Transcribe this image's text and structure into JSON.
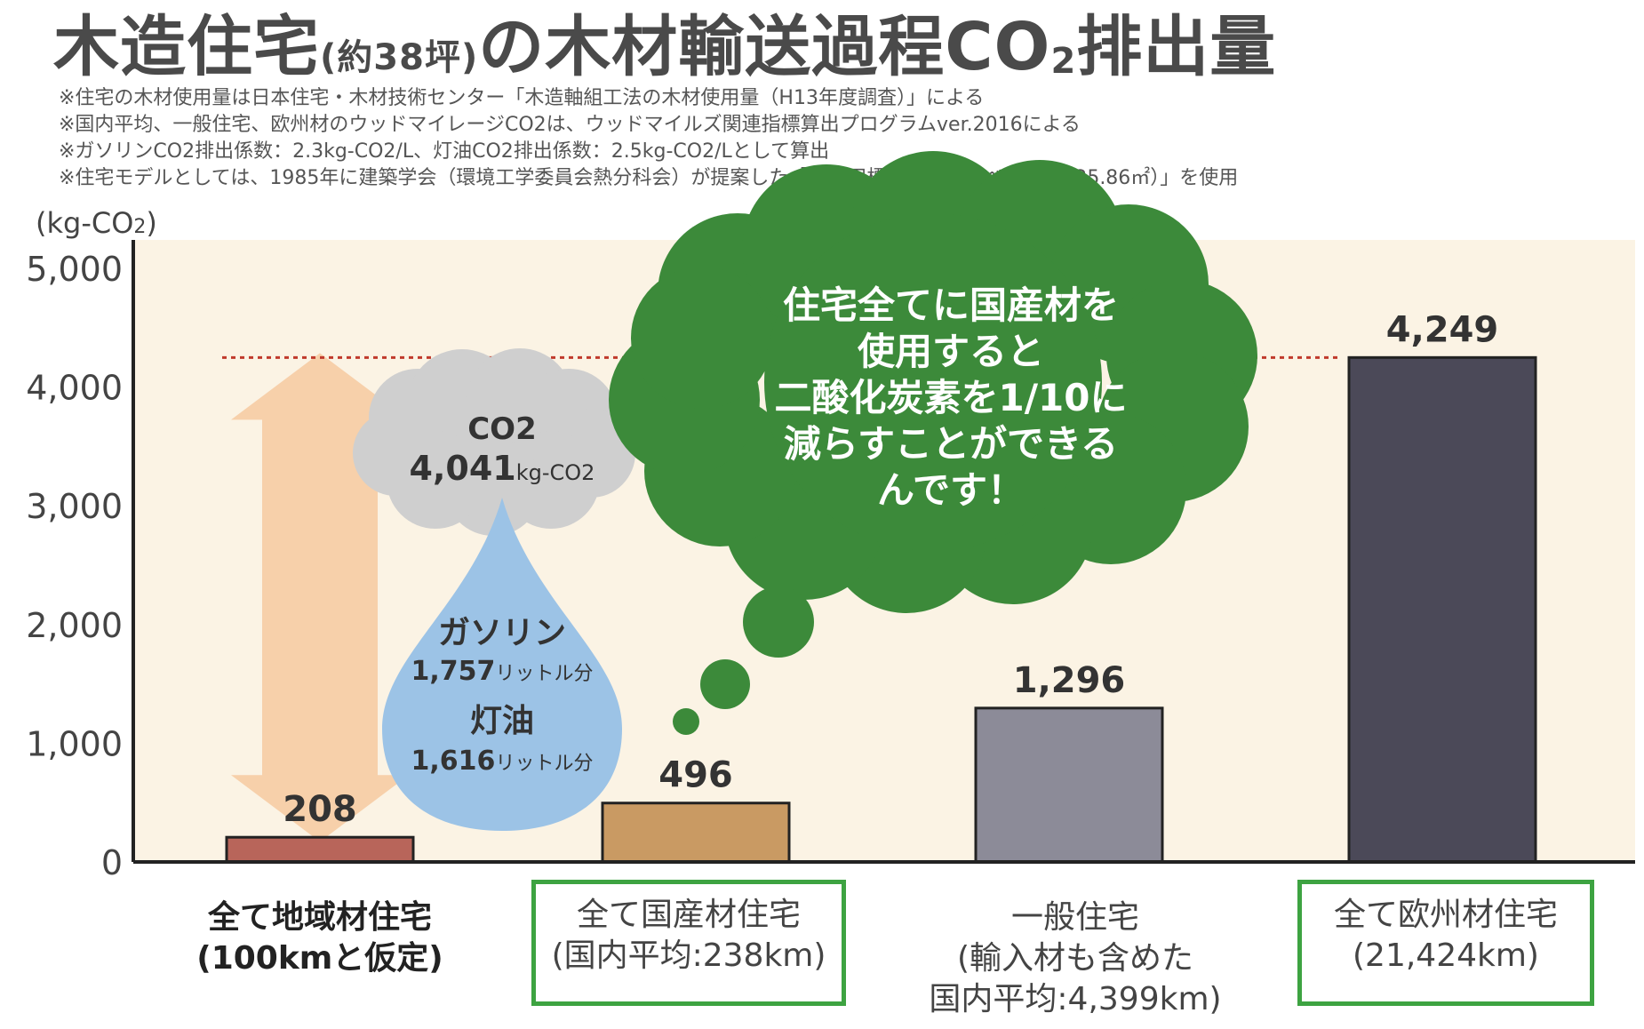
{
  "title": {
    "main": "木造住宅",
    "paren": "(約38坪)",
    "rest": "の木材輸送過程CO",
    "sub2": "2",
    "tail": "排出量"
  },
  "notes": [
    "※住宅の木材使用量は日本住宅・木材技術センター「木造軸組工法の木材使用量（H13年度調査）」による",
    "※国内平均、一般住宅、欧州材のウッドマイレージCO2は、ウッドマイルズ関連指標算出プログラムver.2016による",
    "※ガソリンCO2排出係数：2.3kg-CO2/L、灯油CO2排出係数：2.5kg-CO2/Lとして算出",
    "※住宅モデルとしては、1985年に建築学会（環境工学委員会熱分科会）が提案した「住宅用標準問題（延べ床面積125.86㎡）」を使用"
  ],
  "unit_label": {
    "main": "(kg-CO",
    "sub": "2",
    "close": ")"
  },
  "callout": {
    "lines": [
      "住宅全てに国産材を",
      "使用すると",
      "二酸化炭素を1/10に",
      "減らすことができる",
      "んです！"
    ]
  },
  "co2_cloud": {
    "label": "CO2",
    "value": "4,041",
    "unit": "kg-CO2"
  },
  "drop": {
    "gas_label": "ガソリン",
    "gas_value": "1,757",
    "gas_unit": "リットル分",
    "kero_label": "灯油",
    "kero_value": "1,616",
    "kero_unit": "リットル分"
  },
  "categories_text": [
    {
      "line1": "全て地域材住宅",
      "line2": "(100kmと仮定)",
      "line3": ""
    },
    {
      "line1": "全て国産材住宅",
      "line2": "(国内平均:238km)",
      "line3": ""
    },
    {
      "line1": "一般住宅",
      "line2": "(輸入材も含めた",
      "line3": "国内平均:4,399km)"
    },
    {
      "line1": "全て欧州材住宅",
      "line2": "(21,424km)",
      "line3": ""
    }
  ],
  "colors": {
    "background": "#fbf3e4",
    "bar_local": "#b8655a",
    "bar_domestic": "#c99a63",
    "bar_general": "#8c8b98",
    "bar_europe": "#4b4958",
    "callout_green": "#3c8a3a",
    "box_green": "#3da341",
    "arrow": "#f6c9a0",
    "cloud_grey": "#cfcfcf",
    "drop_blue": "#9cc3e6",
    "ref_line": "#c0392b"
  },
  "chart_data": {
    "type": "bar",
    "ylabel": "(kg-CO2)",
    "ylim": [
      0,
      5000
    ],
    "yticks": [
      0,
      1000,
      2000,
      3000,
      4000,
      5000
    ],
    "ytick_labels": [
      "0",
      "1,000",
      "2,000",
      "3,000",
      "4,000",
      "5,000"
    ],
    "categories": [
      "全て地域材住宅(100kmと仮定)",
      "全て国産材住宅(国内平均:238km)",
      "一般住宅(輸入材も含めた国内平均:4,399km)",
      "全て欧州材住宅(21,424km)"
    ],
    "values": [
      208,
      496,
      1296,
      4249
    ],
    "value_labels": [
      "208",
      "496",
      "1,296",
      "4,249"
    ],
    "reference_line": 4249
  }
}
